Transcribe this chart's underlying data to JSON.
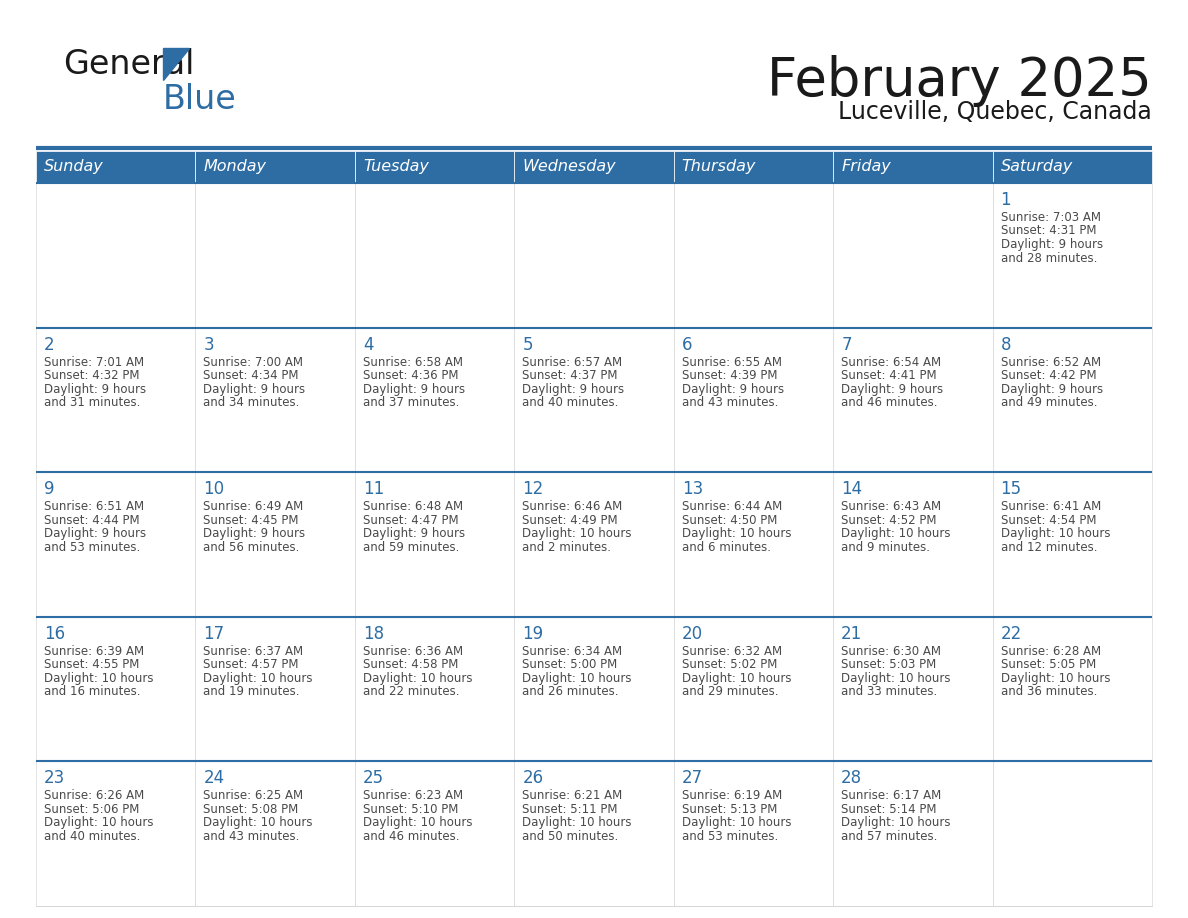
{
  "title": "February 2025",
  "subtitle": "Luceville, Quebec, Canada",
  "days_of_week": [
    "Sunday",
    "Monday",
    "Tuesday",
    "Wednesday",
    "Thursday",
    "Friday",
    "Saturday"
  ],
  "header_bg": "#2E6DA4",
  "header_text_color": "#FFFFFF",
  "cell_bg": "#FFFFFF",
  "border_color": "#2E6DA4",
  "day_number_color": "#2E6DA4",
  "text_color": "#4a4a4a",
  "calendar_data": [
    [
      null,
      null,
      null,
      null,
      null,
      null,
      {
        "day": "1",
        "sunrise": "7:03 AM",
        "sunset": "4:31 PM",
        "daylight": "9 hours\nand 28 minutes."
      }
    ],
    [
      {
        "day": "2",
        "sunrise": "7:01 AM",
        "sunset": "4:32 PM",
        "daylight": "9 hours\nand 31 minutes."
      },
      {
        "day": "3",
        "sunrise": "7:00 AM",
        "sunset": "4:34 PM",
        "daylight": "9 hours\nand 34 minutes."
      },
      {
        "day": "4",
        "sunrise": "6:58 AM",
        "sunset": "4:36 PM",
        "daylight": "9 hours\nand 37 minutes."
      },
      {
        "day": "5",
        "sunrise": "6:57 AM",
        "sunset": "4:37 PM",
        "daylight": "9 hours\nand 40 minutes."
      },
      {
        "day": "6",
        "sunrise": "6:55 AM",
        "sunset": "4:39 PM",
        "daylight": "9 hours\nand 43 minutes."
      },
      {
        "day": "7",
        "sunrise": "6:54 AM",
        "sunset": "4:41 PM",
        "daylight": "9 hours\nand 46 minutes."
      },
      {
        "day": "8",
        "sunrise": "6:52 AM",
        "sunset": "4:42 PM",
        "daylight": "9 hours\nand 49 minutes."
      }
    ],
    [
      {
        "day": "9",
        "sunrise": "6:51 AM",
        "sunset": "4:44 PM",
        "daylight": "9 hours\nand 53 minutes."
      },
      {
        "day": "10",
        "sunrise": "6:49 AM",
        "sunset": "4:45 PM",
        "daylight": "9 hours\nand 56 minutes."
      },
      {
        "day": "11",
        "sunrise": "6:48 AM",
        "sunset": "4:47 PM",
        "daylight": "9 hours\nand 59 minutes."
      },
      {
        "day": "12",
        "sunrise": "6:46 AM",
        "sunset": "4:49 PM",
        "daylight": "10 hours\nand 2 minutes."
      },
      {
        "day": "13",
        "sunrise": "6:44 AM",
        "sunset": "4:50 PM",
        "daylight": "10 hours\nand 6 minutes."
      },
      {
        "day": "14",
        "sunrise": "6:43 AM",
        "sunset": "4:52 PM",
        "daylight": "10 hours\nand 9 minutes."
      },
      {
        "day": "15",
        "sunrise": "6:41 AM",
        "sunset": "4:54 PM",
        "daylight": "10 hours\nand 12 minutes."
      }
    ],
    [
      {
        "day": "16",
        "sunrise": "6:39 AM",
        "sunset": "4:55 PM",
        "daylight": "10 hours\nand 16 minutes."
      },
      {
        "day": "17",
        "sunrise": "6:37 AM",
        "sunset": "4:57 PM",
        "daylight": "10 hours\nand 19 minutes."
      },
      {
        "day": "18",
        "sunrise": "6:36 AM",
        "sunset": "4:58 PM",
        "daylight": "10 hours\nand 22 minutes."
      },
      {
        "day": "19",
        "sunrise": "6:34 AM",
        "sunset": "5:00 PM",
        "daylight": "10 hours\nand 26 minutes."
      },
      {
        "day": "20",
        "sunrise": "6:32 AM",
        "sunset": "5:02 PM",
        "daylight": "10 hours\nand 29 minutes."
      },
      {
        "day": "21",
        "sunrise": "6:30 AM",
        "sunset": "5:03 PM",
        "daylight": "10 hours\nand 33 minutes."
      },
      {
        "day": "22",
        "sunrise": "6:28 AM",
        "sunset": "5:05 PM",
        "daylight": "10 hours\nand 36 minutes."
      }
    ],
    [
      {
        "day": "23",
        "sunrise": "6:26 AM",
        "sunset": "5:06 PM",
        "daylight": "10 hours\nand 40 minutes."
      },
      {
        "day": "24",
        "sunrise": "6:25 AM",
        "sunset": "5:08 PM",
        "daylight": "10 hours\nand 43 minutes."
      },
      {
        "day": "25",
        "sunrise": "6:23 AM",
        "sunset": "5:10 PM",
        "daylight": "10 hours\nand 46 minutes."
      },
      {
        "day": "26",
        "sunrise": "6:21 AM",
        "sunset": "5:11 PM",
        "daylight": "10 hours\nand 50 minutes."
      },
      {
        "day": "27",
        "sunrise": "6:19 AM",
        "sunset": "5:13 PM",
        "daylight": "10 hours\nand 53 minutes."
      },
      {
        "day": "28",
        "sunrise": "6:17 AM",
        "sunset": "5:14 PM",
        "daylight": "10 hours\nand 57 minutes."
      },
      null
    ]
  ]
}
